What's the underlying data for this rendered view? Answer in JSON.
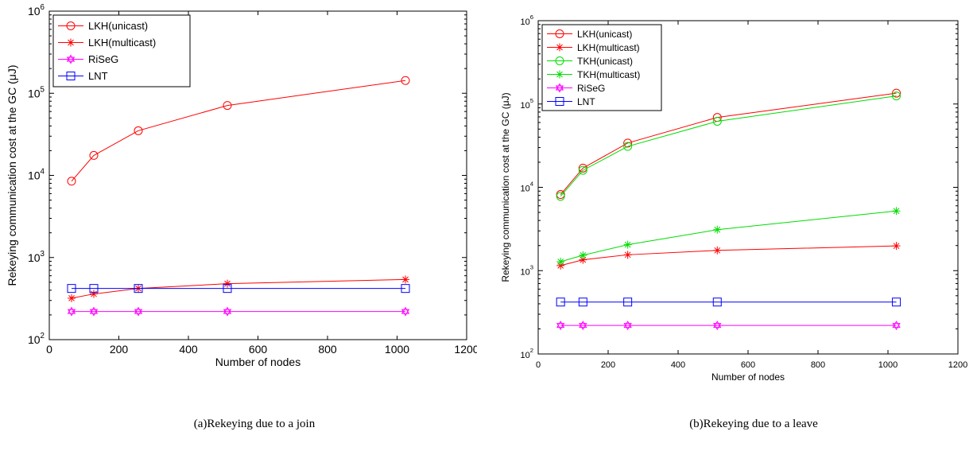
{
  "figure": {
    "caption_a": "(a)Rekeying due to a join",
    "caption_b": "(b)Rekeying due to a leave"
  },
  "chart_data": [
    {
      "type": "line",
      "id": "join",
      "title": "",
      "xlabel": "Number of nodes",
      "ylabel": "Rekeying communication cost at the GC (μJ)",
      "xlim": [
        0,
        1200
      ],
      "ylim": [
        100,
        1000000
      ],
      "yscale": "log",
      "xticks": [
        0,
        200,
        400,
        600,
        800,
        1000,
        1200
      ],
      "yticks": [
        100,
        1000,
        10000,
        100000,
        1000000
      ],
      "grid": false,
      "legend_position": "top-left",
      "x": [
        64,
        128,
        256,
        512,
        1024
      ],
      "series": [
        {
          "name": "LKH(unicast)",
          "color": "#ff0000",
          "marker": "circle",
          "values": [
            8500,
            17500,
            35000,
            71000,
            143000
          ]
        },
        {
          "name": "LKH(multicast)",
          "color": "#ff0000",
          "marker": "star",
          "values": [
            320,
            360,
            420,
            480,
            540
          ]
        },
        {
          "name": "RiSeG",
          "color": "#ff00ff",
          "marker": "hexagram",
          "values": [
            220,
            220,
            220,
            220,
            220
          ]
        },
        {
          "name": "LNT",
          "color": "#0000ff",
          "marker": "square",
          "values": [
            420,
            420,
            420,
            420,
            420
          ]
        }
      ]
    },
    {
      "type": "line",
      "id": "leave",
      "title": "",
      "xlabel": "Number of nodes",
      "ylabel": "Rekeying communication cost at the GC (μJ)",
      "xlim": [
        0,
        1200
      ],
      "ylim": [
        100,
        1000000
      ],
      "yscale": "log",
      "xticks": [
        0,
        200,
        400,
        600,
        800,
        1000,
        1200
      ],
      "yticks": [
        100,
        1000,
        10000,
        100000,
        1000000
      ],
      "grid": false,
      "legend_position": "top-left",
      "x": [
        64,
        128,
        256,
        512,
        1024
      ],
      "series": [
        {
          "name": "LKH(unicast)",
          "color": "#ff0000",
          "marker": "circle",
          "values": [
            8200,
            17000,
            34000,
            69000,
            135000
          ]
        },
        {
          "name": "LKH(multicast)",
          "color": "#ff0000",
          "marker": "star",
          "values": [
            1150,
            1350,
            1550,
            1750,
            1980
          ]
        },
        {
          "name": "TKH(unicast)",
          "color": "#00dd00",
          "marker": "circle",
          "values": [
            7800,
            16000,
            31000,
            62000,
            125000
          ]
        },
        {
          "name": "TKH(multicast)",
          "color": "#00dd00",
          "marker": "star",
          "values": [
            1280,
            1530,
            2050,
            3100,
            5200
          ]
        },
        {
          "name": "RiSeG",
          "color": "#ff00ff",
          "marker": "hexagram",
          "values": [
            220,
            220,
            220,
            220,
            220
          ]
        },
        {
          "name": "LNT",
          "color": "#0000ff",
          "marker": "square",
          "values": [
            420,
            420,
            420,
            420,
            420
          ]
        }
      ]
    }
  ]
}
